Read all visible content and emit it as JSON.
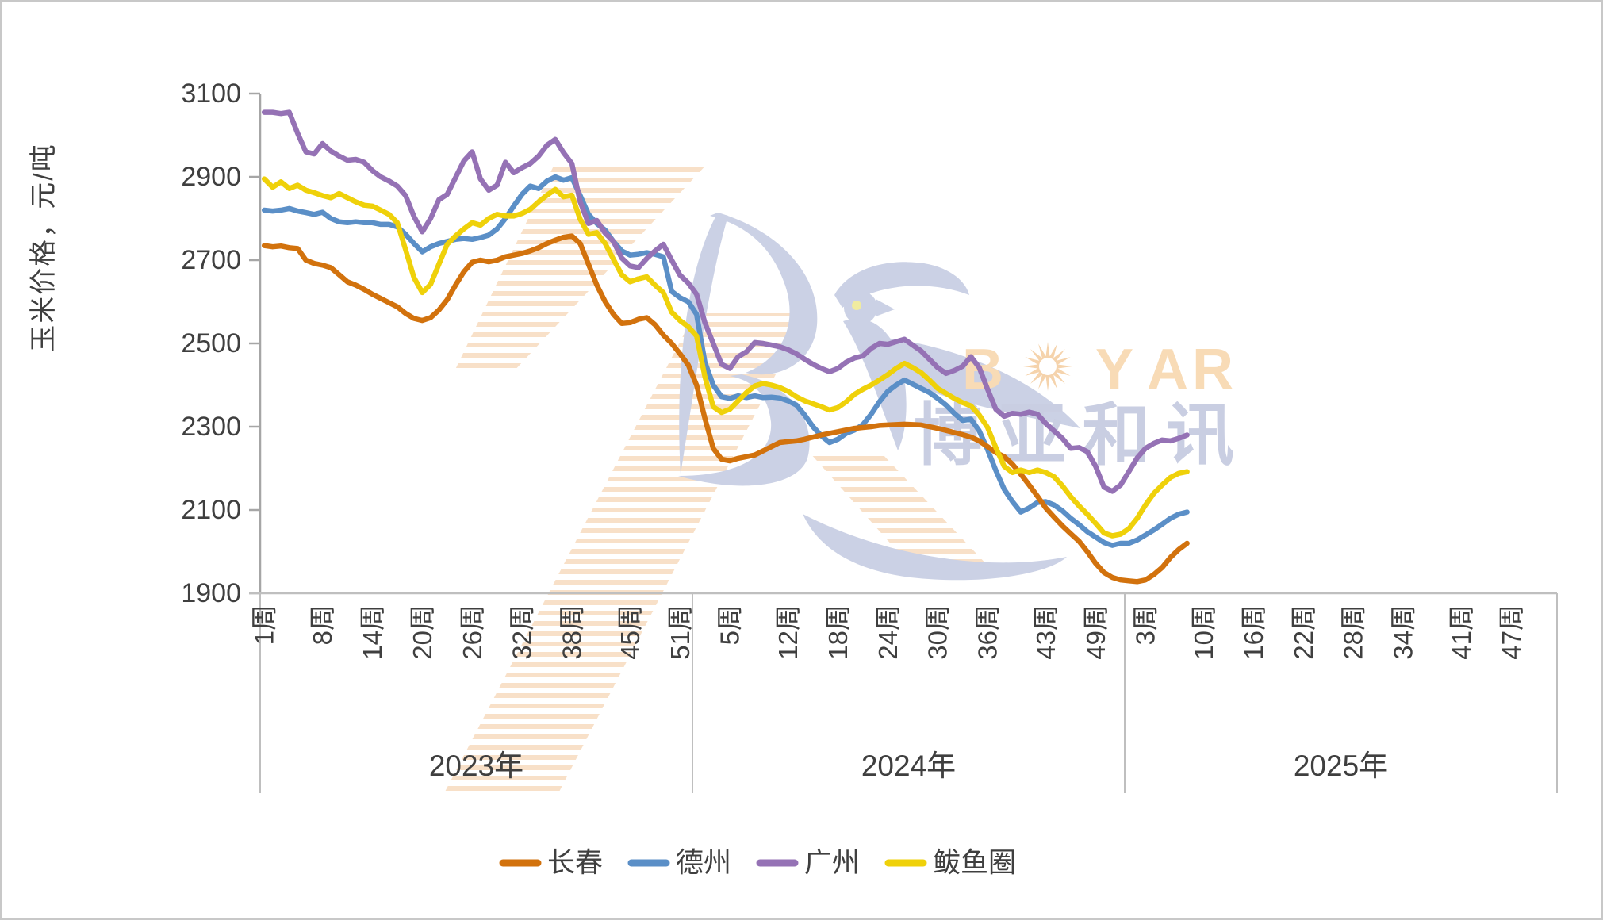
{
  "chart_data": {
    "type": "line",
    "y_axis": {
      "label": "玉米价格，元/吨",
      "min": 1900,
      "max": 3100,
      "tick_step": 200,
      "ticks": [
        3100,
        2900,
        2700,
        2500,
        2300,
        2100,
        1900
      ]
    },
    "x_axis": {
      "week_suffix": "周",
      "weeks_per_year": 52,
      "years": [
        {
          "label": "2023年",
          "tick_weeks": [
            1,
            8,
            14,
            20,
            26,
            32,
            38,
            45,
            51
          ]
        },
        {
          "label": "2024年",
          "tick_weeks": [
            5,
            12,
            18,
            24,
            30,
            36,
            43,
            49
          ]
        },
        {
          "label": "2025年",
          "tick_weeks": [
            3,
            10,
            16,
            22,
            28,
            34,
            41,
            47
          ]
        }
      ]
    },
    "legend_position": "bottom",
    "grid": false,
    "series": [
      {
        "name": "长春",
        "key": "changchun",
        "color": "#D2720D",
        "values_2023": [
          2735,
          2732,
          2734,
          2730,
          2728,
          2700,
          2692,
          2688,
          2682,
          2665,
          2648,
          2640,
          2630,
          2618,
          2608,
          2598,
          2588,
          2572,
          2560,
          2555,
          2562,
          2580,
          2605,
          2640,
          2672,
          2695,
          2700,
          2696,
          2700,
          2708,
          2712,
          2716,
          2722,
          2730,
          2740,
          2748,
          2755,
          2758,
          2740,
          2690,
          2640,
          2600,
          2570,
          2548,
          2550,
          2558,
          2562,
          2545,
          2520,
          2500,
          2475,
          2448
        ],
        "values_2024": [
          2400,
          2320,
          2248,
          2222,
          2218,
          2224,
          2228,
          2232,
          2242,
          2252,
          2262,
          2264,
          2266,
          2270,
          2275,
          2280,
          2284,
          2288,
          2292,
          2296,
          2298,
          2300,
          2303,
          2304,
          2305,
          2306,
          2305,
          2304,
          2300,
          2296,
          2291,
          2286,
          2281,
          2275,
          2266,
          2252,
          2238,
          2228,
          2210,
          2186,
          2160,
          2133,
          2105,
          2083,
          2062,
          2043,
          2025,
          2000,
          1972,
          1950,
          1938,
          1932
        ],
        "values_2025": [
          1930,
          1928,
          1932,
          1945,
          1962,
          1986,
          2005,
          2020
        ]
      },
      {
        "name": "德州",
        "key": "dezhou",
        "color": "#5B8FC7",
        "values_2023": [
          2820,
          2818,
          2820,
          2824,
          2818,
          2814,
          2810,
          2815,
          2800,
          2792,
          2790,
          2792,
          2790,
          2790,
          2786,
          2786,
          2780,
          2762,
          2740,
          2720,
          2732,
          2740,
          2745,
          2750,
          2752,
          2750,
          2754,
          2760,
          2775,
          2800,
          2830,
          2858,
          2878,
          2872,
          2890,
          2900,
          2892,
          2898,
          2855,
          2810,
          2788,
          2772,
          2745,
          2722,
          2712,
          2714,
          2718,
          2714,
          2708,
          2625,
          2610,
          2600
        ],
        "values_2024": [
          2570,
          2455,
          2400,
          2372,
          2368,
          2374,
          2370,
          2374,
          2370,
          2371,
          2369,
          2362,
          2352,
          2328,
          2300,
          2278,
          2262,
          2270,
          2284,
          2292,
          2305,
          2330,
          2360,
          2385,
          2400,
          2412,
          2402,
          2392,
          2382,
          2368,
          2352,
          2332,
          2315,
          2318,
          2290,
          2245,
          2195,
          2150,
          2120,
          2095,
          2105,
          2118,
          2120,
          2112,
          2098,
          2080,
          2065,
          2048,
          2035,
          2022,
          2015,
          2020
        ],
        "values_2025": [
          2020,
          2028,
          2040,
          2052,
          2066,
          2080,
          2090,
          2095
        ]
      },
      {
        "name": "广州",
        "key": "guangzhou",
        "color": "#9572B5",
        "values_2023": [
          3055,
          3055,
          3052,
          3055,
          3005,
          2960,
          2955,
          2980,
          2962,
          2950,
          2940,
          2942,
          2935,
          2915,
          2900,
          2890,
          2878,
          2855,
          2805,
          2768,
          2800,
          2845,
          2858,
          2898,
          2938,
          2960,
          2895,
          2868,
          2880,
          2935,
          2910,
          2922,
          2932,
          2950,
          2976,
          2990,
          2958,
          2932,
          2840,
          2788,
          2795,
          2765,
          2745,
          2705,
          2686,
          2682,
          2704,
          2722,
          2738,
          2700,
          2664,
          2645
        ],
        "values_2024": [
          2618,
          2550,
          2500,
          2450,
          2440,
          2468,
          2480,
          2502,
          2500,
          2496,
          2492,
          2485,
          2475,
          2462,
          2450,
          2440,
          2432,
          2440,
          2455,
          2465,
          2470,
          2488,
          2500,
          2498,
          2504,
          2510,
          2496,
          2482,
          2462,
          2442,
          2428,
          2435,
          2445,
          2468,
          2442,
          2390,
          2342,
          2325,
          2332,
          2330,
          2335,
          2330,
          2308,
          2290,
          2272,
          2248,
          2250,
          2240,
          2205,
          2155,
          2145,
          2160
        ],
        "values_2025": [
          2192,
          2225,
          2248,
          2260,
          2268,
          2266,
          2272,
          2280
        ]
      },
      {
        "name": "鲅鱼圈",
        "key": "bayuquan",
        "color": "#EFD10A",
        "values_2023": [
          2895,
          2875,
          2888,
          2872,
          2880,
          2868,
          2862,
          2855,
          2850,
          2860,
          2850,
          2840,
          2832,
          2830,
          2820,
          2810,
          2790,
          2725,
          2658,
          2622,
          2642,
          2690,
          2738,
          2758,
          2775,
          2790,
          2784,
          2800,
          2810,
          2806,
          2806,
          2812,
          2822,
          2840,
          2856,
          2870,
          2852,
          2856,
          2798,
          2762,
          2766,
          2740,
          2702,
          2665,
          2648,
          2655,
          2660,
          2640,
          2622,
          2575,
          2555,
          2540
        ],
        "values_2024": [
          2518,
          2420,
          2348,
          2334,
          2342,
          2362,
          2382,
          2398,
          2404,
          2400,
          2394,
          2385,
          2372,
          2362,
          2355,
          2348,
          2340,
          2346,
          2360,
          2378,
          2390,
          2400,
          2412,
          2425,
          2440,
          2452,
          2442,
          2430,
          2412,
          2392,
          2380,
          2368,
          2358,
          2350,
          2328,
          2298,
          2250,
          2205,
          2190,
          2196,
          2190,
          2196,
          2190,
          2180,
          2158,
          2132,
          2110,
          2090,
          2068,
          2045,
          2038,
          2042
        ],
        "values_2025": [
          2055,
          2080,
          2112,
          2140,
          2160,
          2178,
          2188,
          2192
        ]
      }
    ],
    "draw_order": [
      "德州",
      "长春",
      "鲅鱼圈",
      "广州"
    ]
  },
  "watermark": {
    "brand": "BOYAR",
    "brand_cn": "博亚和讯",
    "stripe_color": "#F8E0C8",
    "bird_color": "#CBD1E5",
    "brand_color": "#F8DBB6",
    "burst_color": "#F5D3AC",
    "cn_color": "#C9CEE2",
    "eye_color": "#F0ECA0"
  },
  "style_colors": {
    "text": "#3F3F3F",
    "axis_line": "#A6A6A6",
    "category_line": "#BFBFBF",
    "border": "#C8C8C8",
    "background": "#FFFFFF"
  }
}
